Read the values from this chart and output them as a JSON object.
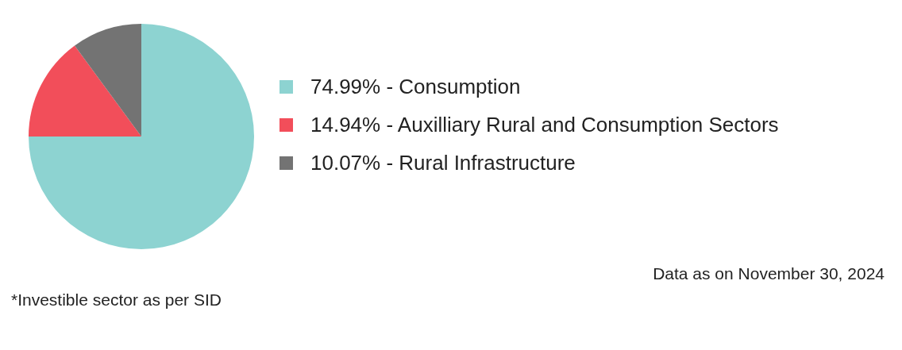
{
  "chart_data": {
    "type": "pie",
    "categories": [
      "74.99% - Consumption",
      "14.94% - Auxilliary Rural and Consumption Sectors",
      "10.07% - Rural Infrastructure"
    ],
    "values": [
      74.99,
      14.94,
      10.07
    ],
    "colors": [
      "#8dd3d1",
      "#f24e5a",
      "#737373"
    ],
    "legend": "right",
    "annotations": [
      "Data as on November 30, 2024",
      "*Investible sector as per SID"
    ]
  }
}
